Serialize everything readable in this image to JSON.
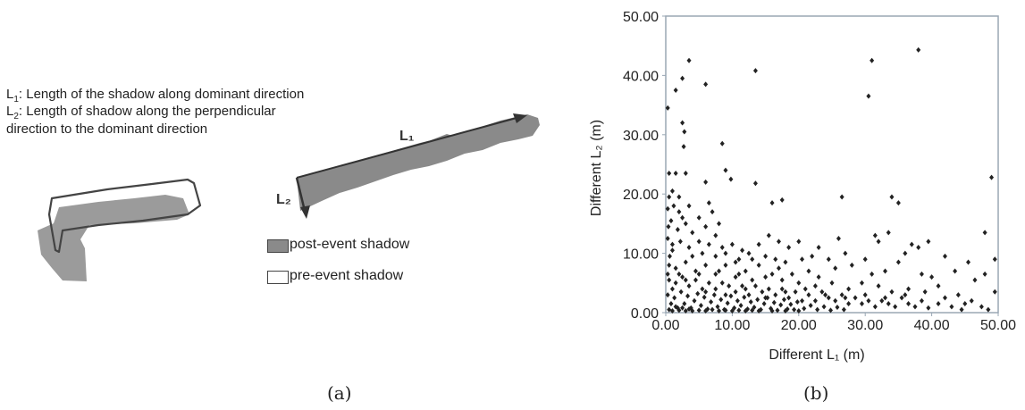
{
  "panel_a": {
    "legend": {
      "l1_sym": "L",
      "l1_sub": "1",
      "l1_text": ": Length of the shadow along dominant direction",
      "l2_sym": "L",
      "l2_sub": "2",
      "l2_text": ": Length of shadow along the perpendicular",
      "l2_text_line2": "direction to the dominant direction"
    },
    "arrow_labels": {
      "l1": "L₁",
      "l2": "L₂"
    },
    "key": [
      {
        "label": "post-event shadow",
        "color": "#8a8a8a"
      },
      {
        "label": "pre-event shadow",
        "color": "#ffffff"
      }
    ],
    "caption": "(a)"
  },
  "panel_b": {
    "caption": "(b)"
  },
  "chart_data": {
    "type": "scatter",
    "xlabel": "Different L₁ (m)",
    "ylabel": "Different L₂ (m)",
    "xlim": [
      0,
      50
    ],
    "ylim": [
      0,
      50
    ],
    "xticks": [
      "0.00",
      "10.00",
      "20.00",
      "30.00",
      "40.00",
      "50.00"
    ],
    "yticks": [
      "0.00",
      "10.00",
      "20.00",
      "30.00",
      "40.00",
      "50.00"
    ],
    "grid": false,
    "marker_color": "#222222",
    "points": [
      [
        0.3,
        34.5
      ],
      [
        1.5,
        37.5
      ],
      [
        2.5,
        39.5
      ],
      [
        3.5,
        42.5
      ],
      [
        6.0,
        38.5
      ],
      [
        13.5,
        40.8
      ],
      [
        30.5,
        36.5
      ],
      [
        31.0,
        42.5
      ],
      [
        38.0,
        44.3
      ],
      [
        2.5,
        32.0
      ],
      [
        2.8,
        30.5
      ],
      [
        2.7,
        28.0
      ],
      [
        8.5,
        28.5
      ],
      [
        9.0,
        24.0
      ],
      [
        9.8,
        22.5
      ],
      [
        13.5,
        21.8
      ],
      [
        16.0,
        18.5
      ],
      [
        17.5,
        19.0
      ],
      [
        26.5,
        19.5
      ],
      [
        34.0,
        19.5
      ],
      [
        35.0,
        18.5
      ],
      [
        49.0,
        22.8
      ],
      [
        0.5,
        23.5
      ],
      [
        1.5,
        23.5
      ],
      [
        3.0,
        23.5
      ],
      [
        6.0,
        22.0
      ],
      [
        0.5,
        19.5
      ],
      [
        1.2,
        18.0
      ],
      [
        2.0,
        17.0
      ],
      [
        0.8,
        15.5
      ],
      [
        1.8,
        14.0
      ],
      [
        3.0,
        15.0
      ],
      [
        4.0,
        13.5
      ],
      [
        5.0,
        16.0
      ],
      [
        6.5,
        18.5
      ],
      [
        7.0,
        17.0
      ],
      [
        0.3,
        12.5
      ],
      [
        1.0,
        11.5
      ],
      [
        2.2,
        12.0
      ],
      [
        3.5,
        11.0
      ],
      [
        5.0,
        12.0
      ],
      [
        6.5,
        11.5
      ],
      [
        7.5,
        13.0
      ],
      [
        8.5,
        11.0
      ],
      [
        10.0,
        11.5
      ],
      [
        11.0,
        9.0
      ],
      [
        12.5,
        10.0
      ],
      [
        14.0,
        11.5
      ],
      [
        15.5,
        13.0
      ],
      [
        17.0,
        12.0
      ],
      [
        18.5,
        11.0
      ],
      [
        20.0,
        12.0
      ],
      [
        23.0,
        11.0
      ],
      [
        26.0,
        12.5
      ],
      [
        31.5,
        13.0
      ],
      [
        32.0,
        12.0
      ],
      [
        33.5,
        13.5
      ],
      [
        37.0,
        11.5
      ],
      [
        38.0,
        11.0
      ],
      [
        39.5,
        12.0
      ],
      [
        48.0,
        13.5
      ],
      [
        49.5,
        9.0
      ],
      [
        45.5,
        8.5
      ],
      [
        43.5,
        7.0
      ],
      [
        40.0,
        6.0
      ],
      [
        35.0,
        8.5
      ],
      [
        33.0,
        7.0
      ],
      [
        31.0,
        6.5
      ],
      [
        28.0,
        8.0
      ],
      [
        25.5,
        7.5
      ],
      [
        23.0,
        6.0
      ],
      [
        21.5,
        7.0
      ],
      [
        19.0,
        6.5
      ],
      [
        17.0,
        7.5
      ],
      [
        15.0,
        6.0
      ],
      [
        14.0,
        8.0
      ],
      [
        12.0,
        7.0
      ],
      [
        10.5,
        6.0
      ],
      [
        9.0,
        8.0
      ],
      [
        7.5,
        6.5
      ],
      [
        6.0,
        8.0
      ],
      [
        4.5,
        7.0
      ],
      [
        3.0,
        8.5
      ],
      [
        1.5,
        7.5
      ],
      [
        0.5,
        8.0
      ],
      [
        0.5,
        5.5
      ],
      [
        1.5,
        5.0
      ],
      [
        2.5,
        6.0
      ],
      [
        3.5,
        4.5
      ],
      [
        4.5,
        5.5
      ],
      [
        5.5,
        4.0
      ],
      [
        6.5,
        5.0
      ],
      [
        7.5,
        4.0
      ],
      [
        8.5,
        5.0
      ],
      [
        9.5,
        4.5
      ],
      [
        10.5,
        3.5
      ],
      [
        11.5,
        4.5
      ],
      [
        12.5,
        3.0
      ],
      [
        13.5,
        4.5
      ],
      [
        14.5,
        3.5
      ],
      [
        15.5,
        4.0
      ],
      [
        16.5,
        3.0
      ],
      [
        17.5,
        4.0
      ],
      [
        18.5,
        2.5
      ],
      [
        19.5,
        3.5
      ],
      [
        20.5,
        2.0
      ],
      [
        21.5,
        3.0
      ],
      [
        22.5,
        2.0
      ],
      [
        23.5,
        3.5
      ],
      [
        24.5,
        2.5
      ],
      [
        25.5,
        2.0
      ],
      [
        26.5,
        3.0
      ],
      [
        27.5,
        1.5
      ],
      [
        28.5,
        2.5
      ],
      [
        29.5,
        1.5
      ],
      [
        30.5,
        2.0
      ],
      [
        31.5,
        1.0
      ],
      [
        32.5,
        2.0
      ],
      [
        33.5,
        1.5
      ],
      [
        34.5,
        1.0
      ],
      [
        35.5,
        2.5
      ],
      [
        36.5,
        1.5
      ],
      [
        37.5,
        1.0
      ],
      [
        38.5,
        2.0
      ],
      [
        39.5,
        0.8
      ],
      [
        41.0,
        1.5
      ],
      [
        43.0,
        1.0
      ],
      [
        44.5,
        0.5
      ],
      [
        46.0,
        2.0
      ],
      [
        47.5,
        1.0
      ],
      [
        48.5,
        0.5
      ],
      [
        49.5,
        3.5
      ],
      [
        0.3,
        3.0
      ],
      [
        0.8,
        1.5
      ],
      [
        1.3,
        2.5
      ],
      [
        1.8,
        0.8
      ],
      [
        2.3,
        3.5
      ],
      [
        2.8,
        1.5
      ],
      [
        3.3,
        2.8
      ],
      [
        3.8,
        0.8
      ],
      [
        4.3,
        2.0
      ],
      [
        4.8,
        3.2
      ],
      [
        5.3,
        1.2
      ],
      [
        5.8,
        2.6
      ],
      [
        6.3,
        0.6
      ],
      [
        6.8,
        1.8
      ],
      [
        7.3,
        3.0
      ],
      [
        7.8,
        1.0
      ],
      [
        8.3,
        2.2
      ],
      [
        8.8,
        0.5
      ],
      [
        9.3,
        1.6
      ],
      [
        9.8,
        2.8
      ],
      [
        10.3,
        0.8
      ],
      [
        10.8,
        2.0
      ],
      [
        11.3,
        1.2
      ],
      [
        11.8,
        2.6
      ],
      [
        12.3,
        0.6
      ],
      [
        12.8,
        1.8
      ],
      [
        13.3,
        0.9
      ],
      [
        13.8,
        2.2
      ],
      [
        14.3,
        0.5
      ],
      [
        14.8,
        1.5
      ],
      [
        15.3,
        2.5
      ],
      [
        15.8,
        0.7
      ],
      [
        16.3,
        1.7
      ],
      [
        16.8,
        0.4
      ],
      [
        17.3,
        1.3
      ],
      [
        17.8,
        2.2
      ],
      [
        18.3,
        0.6
      ],
      [
        18.8,
        1.4
      ],
      [
        19.3,
        0.5
      ],
      [
        19.8,
        1.8
      ],
      [
        20.8,
        0.7
      ],
      [
        21.8,
        1.2
      ],
      [
        22.8,
        0.5
      ],
      [
        23.8,
        1.0
      ],
      [
        24.8,
        0.4
      ],
      [
        25.8,
        0.9
      ],
      [
        26.8,
        0.5
      ],
      [
        0.5,
        0.5
      ],
      [
        1.0,
        0.3
      ],
      [
        1.5,
        1.0
      ],
      [
        2.0,
        0.4
      ],
      [
        2.5,
        0.8
      ],
      [
        3.0,
        0.3
      ],
      [
        3.5,
        0.6
      ],
      [
        4.0,
        0.3
      ],
      [
        5.0,
        0.4
      ],
      [
        6.0,
        0.3
      ],
      [
        7.0,
        0.5
      ],
      [
        8.0,
        0.3
      ],
      [
        9.0,
        0.4
      ],
      [
        10.0,
        0.3
      ],
      [
        11.0,
        0.4
      ],
      [
        12.0,
        0.3
      ],
      [
        13.0,
        0.4
      ],
      [
        14.0,
        0.3
      ],
      [
        16.0,
        0.3
      ],
      [
        18.0,
        0.3
      ],
      [
        20.0,
        0.3
      ],
      [
        0.3,
        6.5
      ],
      [
        0.6,
        9.5
      ],
      [
        1.0,
        10.5
      ],
      [
        0.4,
        14.5
      ],
      [
        0.3,
        17.5
      ],
      [
        1.0,
        20.5
      ],
      [
        2.0,
        19.5
      ],
      [
        2.5,
        16.0
      ],
      [
        3.5,
        18.0
      ],
      [
        4.0,
        9.5
      ],
      [
        5.5,
        10.0
      ],
      [
        6.0,
        14.5
      ],
      [
        7.5,
        9.5
      ],
      [
        8.0,
        15.0
      ],
      [
        9.0,
        10.0
      ],
      [
        10.5,
        8.5
      ],
      [
        11.5,
        10.5
      ],
      [
        13.0,
        9.0
      ],
      [
        15.0,
        9.5
      ],
      [
        16.5,
        9.0
      ],
      [
        18.0,
        8.5
      ],
      [
        20.5,
        9.0
      ],
      [
        22.0,
        9.5
      ],
      [
        24.5,
        9.0
      ],
      [
        27.0,
        10.0
      ],
      [
        30.0,
        9.0
      ],
      [
        36.0,
        10.0
      ],
      [
        41.0,
        4.5
      ],
      [
        44.0,
        3.0
      ],
      [
        46.5,
        5.5
      ],
      [
        48.0,
        6.5
      ],
      [
        42.0,
        9.5
      ],
      [
        38.5,
        6.5
      ],
      [
        36.5,
        4.0
      ],
      [
        34.0,
        3.5
      ],
      [
        32.0,
        4.5
      ],
      [
        29.5,
        5.0
      ],
      [
        27.5,
        4.0
      ],
      [
        25.0,
        5.0
      ],
      [
        22.5,
        4.5
      ],
      [
        20.0,
        5.0
      ],
      [
        17.5,
        5.5
      ],
      [
        16.0,
        6.5
      ],
      [
        13.0,
        5.5
      ],
      [
        11.0,
        6.5
      ],
      [
        8.0,
        7.0
      ],
      [
        5.0,
        6.5
      ],
      [
        2.0,
        6.5
      ],
      [
        1.0,
        4.0
      ],
      [
        3.0,
        5.5
      ],
      [
        6.0,
        3.5
      ],
      [
        9.0,
        3.0
      ],
      [
        12.0,
        4.0
      ],
      [
        15.0,
        2.5
      ],
      [
        18.0,
        3.5
      ],
      [
        21.0,
        4.0
      ],
      [
        24.0,
        3.0
      ],
      [
        27.0,
        2.5
      ],
      [
        30.0,
        3.0
      ],
      [
        33.0,
        2.5
      ],
      [
        36.0,
        3.0
      ],
      [
        39.0,
        3.5
      ],
      [
        42.0,
        2.5
      ],
      [
        45.0,
        1.5
      ]
    ]
  }
}
